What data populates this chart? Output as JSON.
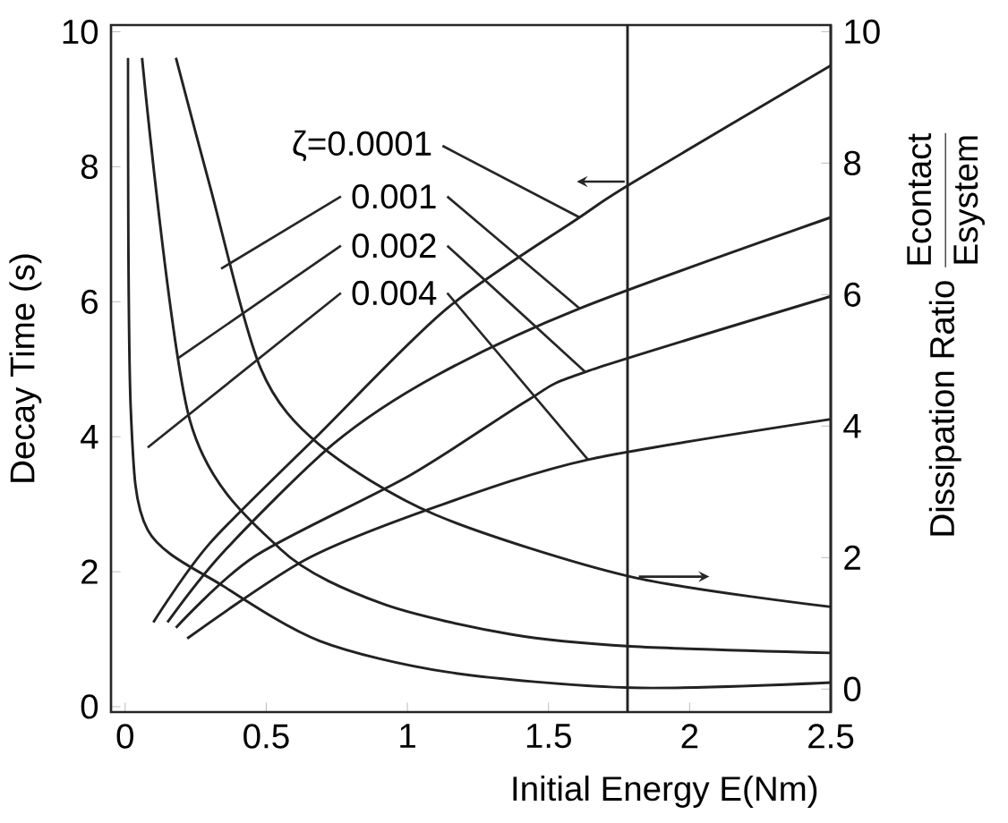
{
  "chart_data": {
    "type": "line",
    "xlabel": "Initial Energy E(Nm)",
    "ylabel": "Decay Time (s)",
    "y2label": "\\mbox{Dissipation Ratio}\\;\\frac{\\mbox{Econtact}}{\\mbox{Esystem}}",
    "xlim": [
      -0.05,
      2.5
    ],
    "xticks": [
      0,
      0.5,
      1,
      1.5,
      2,
      2.5
    ],
    "ylim": [
      -0.08,
      10.1
    ],
    "yticks": [
      0,
      2,
      4,
      6,
      8,
      10
    ],
    "y2lim": [
      -0.35,
      10.1
    ],
    "y2ticks": [
      0,
      2,
      4,
      6,
      8,
      10
    ],
    "line_style": "solid",
    "series": [
      {
        "color": "#222222",
        "x": [
          0.1,
          0.3,
          0.69,
          1.14,
          1.61,
          1.8,
          2.5
        ],
        "values": [
          1.25,
          2.42,
          4.05,
          5.9,
          7.25,
          7.77,
          9.5
        ]
      },
      {
        "color": "#222222",
        "x": [
          0.15,
          0.35,
          0.74,
          1.1,
          1.61,
          2.5
        ],
        "values": [
          1.25,
          2.3,
          3.9,
          4.9,
          5.9,
          7.25
        ]
      },
      {
        "color": "#222222",
        "x": [
          0.18,
          0.46,
          1.01,
          1.43,
          1.63,
          2.5
        ],
        "values": [
          1.17,
          2.23,
          3.43,
          4.55,
          4.96,
          6.08
        ]
      },
      {
        "color": "#222222",
        "x": [
          0.22,
          0.64,
          1.1,
          1.64,
          2.5
        ],
        "values": [
          1.01,
          2.18,
          2.96,
          3.66,
          4.26
        ]
      },
      {
        "color": "#222222",
        "axis": "y2",
        "x": [
          0.18,
          0.3,
          0.48,
          0.69,
          1.1,
          1.79,
          2.5
        ],
        "values": [
          9.6,
          7.66,
          4.88,
          3.71,
          2.65,
          1.71,
          1.25
        ]
      },
      {
        "color": "#222222",
        "axis": "y2",
        "x": [
          0.06,
          0.23,
          0.55,
          0.91,
          1.37,
          1.79,
          2.5
        ],
        "values": [
          9.6,
          4.08,
          2.13,
          1.3,
          0.83,
          0.65,
          0.55
        ]
      },
      {
        "color": "#222222",
        "axis": "y2",
        "x": [
          0.01,
          0.02,
          0.08,
          0.35,
          0.69,
          1.14,
          1.79,
          2.5
        ],
        "values": [
          9.6,
          4.26,
          2.42,
          1.56,
          0.73,
          0.26,
          0.02,
          0.1
        ]
      }
    ],
    "ref_lines": [
      {
        "axis": "x",
        "value": 1.78,
        "color": "#222222"
      }
    ],
    "annotations": [
      {
        "text": "ζ=0.0001",
        "x": 1.61,
        "y": 7.25
      },
      {
        "text": "0.001",
        "x": 1.61,
        "y": 5.9
      },
      {
        "text": "0.002",
        "x": 1.63,
        "y": 4.96
      },
      {
        "text": "0.004",
        "x": 1.64,
        "y": 3.66
      }
    ]
  }
}
